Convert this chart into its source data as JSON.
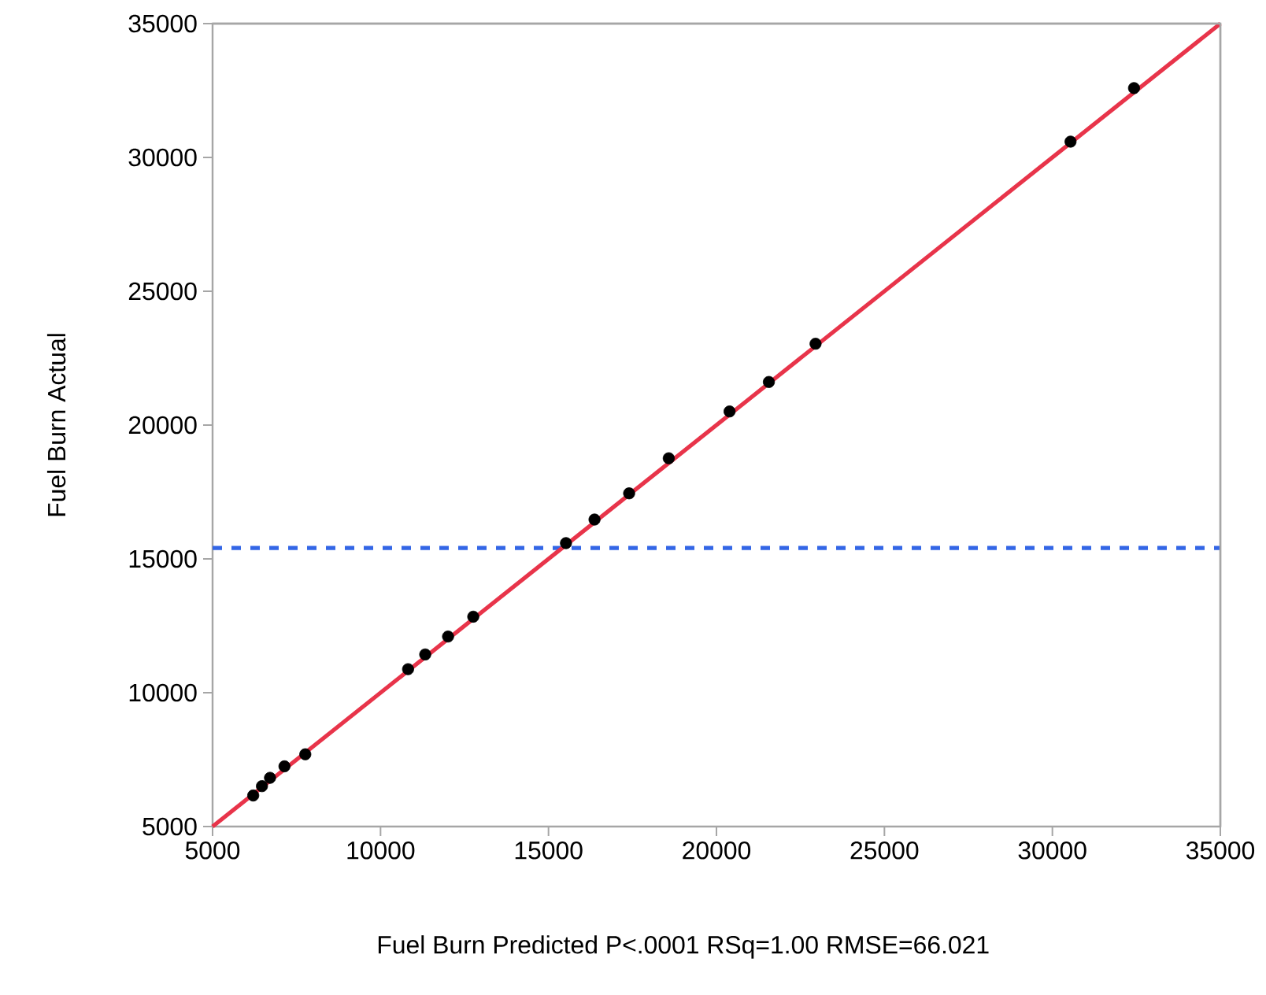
{
  "chart_data": {
    "type": "scatter",
    "xlabel": "Fuel Burn Predicted P<.0001 RSq=1.00 RMSE=66.021",
    "ylabel": "Fuel Burn Actual",
    "xlim": [
      5000,
      35000
    ],
    "ylim": [
      5000,
      35000
    ],
    "xticks": [
      5000,
      10000,
      15000,
      20000,
      25000,
      30000,
      35000
    ],
    "yticks": [
      5000,
      10000,
      15000,
      20000,
      25000,
      30000,
      35000
    ],
    "grid": false,
    "series": [
      {
        "type": "scatter",
        "color": "#000000",
        "x": [
          6210,
          6470,
          6710,
          7140,
          7760,
          10820,
          11330,
          12010,
          12760,
          15520,
          16370,
          17400,
          18580,
          20390,
          21560,
          22950,
          30540,
          32430
        ],
        "values": [
          6160,
          6510,
          6820,
          7250,
          7700,
          10880,
          11430,
          12100,
          12840,
          15590,
          16470,
          17450,
          18760,
          20510,
          21610,
          23040,
          30590,
          32590
        ]
      },
      {
        "type": "line",
        "color": "#e8344a",
        "line_style": "solid",
        "x": [
          5000,
          35000
        ],
        "values": [
          5000,
          35000
        ]
      }
    ],
    "ref_lines": [
      {
        "axis": "y",
        "value": 15410,
        "color": "#3366e6",
        "line_style": "dashed"
      }
    ]
  }
}
